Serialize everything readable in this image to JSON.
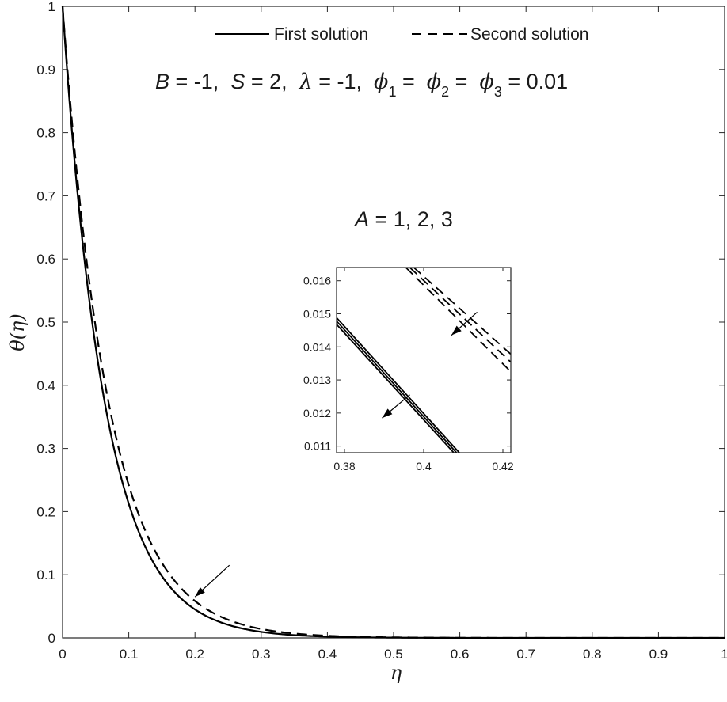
{
  "chart_data": {
    "type": "line",
    "xlabel": "η",
    "ylabel": "θ(η)",
    "xlim": [
      0,
      1
    ],
    "ylim": [
      0,
      1
    ],
    "xticks": [
      "0",
      "0.1",
      "0.2",
      "0.3",
      "0.4",
      "0.5",
      "0.6",
      "0.7",
      "0.8",
      "0.9",
      "1"
    ],
    "yticks": [
      "0",
      "0.1",
      "0.2",
      "0.3",
      "0.4",
      "0.5",
      "0.6",
      "0.7",
      "0.8",
      "0.9",
      "1"
    ],
    "grid": false,
    "legend": {
      "placement": "top-center",
      "entries": [
        {
          "label": "First solution",
          "style": "solid"
        },
        {
          "label": "Second solution",
          "style": "dashed"
        }
      ]
    },
    "parameters_annotation": {
      "B": "B",
      "B_val": " = -1,  ",
      "S": "S",
      "S_val": " = 2,  ",
      "lambda": "λ",
      "lambda_val": " = -1,  ",
      "phi1": "ϕ",
      "phi1_sub": "1",
      "phi1_val": " =  ",
      "phi2": "ϕ",
      "phi2_sub": "2",
      "phi2_val": " =  ",
      "phi3": "ϕ",
      "phi3_sub": "3",
      "phi3_val": " = 0.01"
    },
    "a_annotation": {
      "symbol": "A",
      "values": " = 1, 2, 3"
    },
    "series_style": {
      "first": {
        "dash": "solid",
        "color": "#000000",
        "decay": 15.5
      },
      "second": {
        "dash": "dashed",
        "color": "#000000",
        "decay": 14.2
      }
    },
    "main_arrow": {
      "from": [
        0.252,
        0.115
      ],
      "to": [
        0.2,
        0.065
      ]
    },
    "inset": {
      "xlim": [
        0.378,
        0.422
      ],
      "ylim": [
        0.0108,
        0.0164
      ],
      "xticks": [
        0.38,
        0.4,
        0.42
      ],
      "xtick_labels": [
        "0.38",
        "0.4",
        "0.42"
      ],
      "yticks": [
        0.011,
        0.012,
        0.013,
        0.014,
        0.015,
        0.016
      ],
      "ytick_labels": [
        "0.011",
        "0.012",
        "0.013",
        "0.014",
        "0.015",
        "0.016"
      ],
      "series": [
        {
          "style": "solid",
          "x": [
            0.378,
            0.409
          ],
          "y": [
            0.01488,
            0.0108
          ]
        },
        {
          "style": "solid",
          "x": [
            0.378,
            0.4083
          ],
          "y": [
            0.01478,
            0.0108
          ]
        },
        {
          "style": "solid",
          "x": [
            0.378,
            0.4076
          ],
          "y": [
            0.01468,
            0.0108
          ]
        },
        {
          "style": "dashed",
          "x": [
            0.3975,
            0.422
          ],
          "y": [
            0.0164,
            0.01378
          ]
        },
        {
          "style": "dashed",
          "x": [
            0.3965,
            0.422
          ],
          "y": [
            0.0164,
            0.01354
          ]
        },
        {
          "style": "dashed",
          "x": [
            0.3955,
            0.422
          ],
          "y": [
            0.0164,
            0.01325
          ]
        }
      ],
      "arrows": [
        {
          "from": [
            0.4135,
            0.01505
          ],
          "to": [
            0.407,
            0.01435
          ]
        },
        {
          "from": [
            0.3965,
            0.01255
          ],
          "to": [
            0.3895,
            0.01185
          ]
        }
      ]
    }
  }
}
